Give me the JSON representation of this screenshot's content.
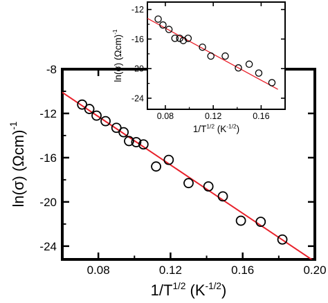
{
  "chart_data": [
    {
      "type": "scatter",
      "xlabel": "1/T^1/2 (K^-1/2)",
      "ylabel": "ln(σ) (Ωcm)^-1",
      "xlim": [
        0.06,
        0.2
      ],
      "ylim": [
        -25.2,
        -8
      ],
      "xticks": [
        "0.08",
        "0.12",
        "0.16",
        "0.20"
      ],
      "yticks": [
        "-8",
        "-12",
        "-16",
        "-20",
        "-24"
      ],
      "grid": false,
      "marker": "open-circle",
      "line_color": "#e8202a",
      "series": [
        {
          "x": [
            0.071,
            0.075,
            0.079,
            0.084,
            0.09,
            0.094,
            0.097,
            0.101,
            0.105,
            0.112,
            0.119,
            0.13,
            0.141,
            0.149,
            0.159,
            0.17,
            0.182
          ],
          "y": [
            -11.2,
            -11.6,
            -12.2,
            -12.7,
            -13.3,
            -13.7,
            -14.5,
            -14.6,
            -14.8,
            -16.8,
            -16.2,
            -18.3,
            -18.6,
            -19.5,
            -21.7,
            -21.8,
            -23.4
          ]
        }
      ],
      "fit_line": {
        "x": [
          0.06,
          0.2
        ],
        "y": [
          -10.1,
          -25.4
        ]
      }
    },
    {
      "type": "scatter",
      "xlabel": "1/T^1/2 (K^-1/2)",
      "ylabel": "ln(σ) (Ωcm)^-1",
      "xlim": [
        0.065,
        0.18
      ],
      "ylim": [
        -25.5,
        -11
      ],
      "xticks": [
        "0.08",
        "0.12",
        "0.16"
      ],
      "yticks": [
        "-12",
        "-16",
        "-20",
        "-24"
      ],
      "grid": false,
      "marker": "open-circle",
      "line_color": "#e8202a",
      "series": [
        {
          "x": [
            0.074,
            0.078,
            0.083,
            0.088,
            0.092,
            0.095,
            0.099,
            0.111,
            0.118,
            0.13,
            0.141,
            0.15,
            0.158,
            0.169
          ],
          "y": [
            -13.3,
            -14.1,
            -14.7,
            -15.9,
            -15.9,
            -16.2,
            -15.9,
            -17.1,
            -18.3,
            -18.3,
            -19.9,
            -19.4,
            -20.6,
            -21.9
          ]
        }
      ],
      "fit_line": {
        "x": [
          0.065,
          0.174
        ],
        "y": [
          -13.2,
          -22.8
        ]
      }
    }
  ]
}
